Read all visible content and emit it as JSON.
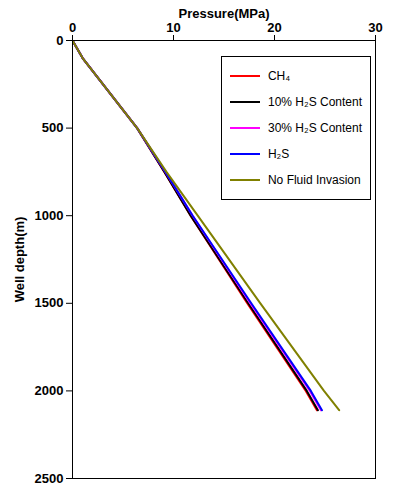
{
  "chart_data": {
    "type": "line",
    "x_label": "Pressure(MPa)",
    "y_label": "Well depth(m)",
    "y": [
      0,
      100,
      500,
      750,
      1000,
      1500,
      2000,
      2110
    ],
    "series": [
      {
        "name": "CH₄",
        "color": "#ff0000",
        "values": [
          0,
          1.0,
          6.4,
          9.1,
          11.7,
          17.3,
          23.1,
          24.2
        ]
      },
      {
        "name": "10% H₂S Content",
        "color": "#000000",
        "values": [
          0,
          1.0,
          6.4,
          9.1,
          11.7,
          17.4,
          23.2,
          24.3
        ]
      },
      {
        "name": "30% H₂S Content",
        "color": "#ff00ff",
        "values": [
          0,
          1.0,
          6.4,
          9.2,
          11.9,
          17.6,
          23.5,
          24.6
        ]
      },
      {
        "name": "H₂S",
        "color": "#0000ff",
        "values": [
          0,
          1.0,
          6.4,
          9.2,
          11.9,
          17.7,
          23.6,
          24.7
        ]
      },
      {
        "name": "No Fluid Invasion",
        "color": "#808000",
        "values": [
          0,
          1.0,
          6.4,
          9.3,
          12.4,
          18.6,
          24.9,
          26.4
        ]
      }
    ],
    "xlim": [
      0,
      30
    ],
    "xticks": [
      0,
      10,
      20,
      30
    ],
    "ylim": [
      0,
      2500
    ],
    "yticks": [
      0,
      500,
      1000,
      1500,
      2000,
      2500
    ],
    "grid": false,
    "legend": "upper right"
  }
}
